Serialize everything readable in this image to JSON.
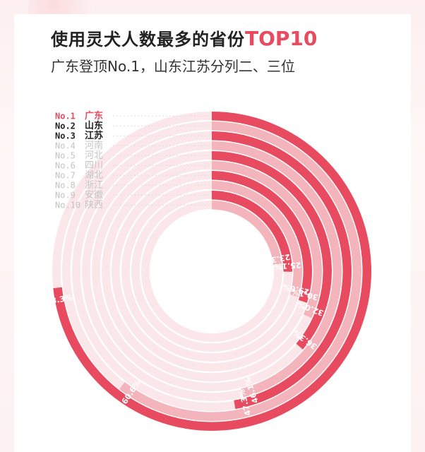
{
  "header": {
    "title_main": "使用灵犬人数最多的省份",
    "title_accent": "TOP10",
    "subtitle": "广东登顶No.1，山东江苏分列二、三位"
  },
  "colors": {
    "dark": "#e84a5f",
    "light": "#f4b4bc",
    "track": "#fbe7e9",
    "text_dark": "#222222",
    "text_muted": "#c4c4c4"
  },
  "chart_data": {
    "type": "radial-bar",
    "title": "使用灵犬人数最多的省份TOP10",
    "categories": [
      "广东",
      "山东",
      "江苏",
      "河南",
      "河北",
      "四川",
      "湖北",
      "浙江",
      "安徽",
      "陕西"
    ],
    "ranks": [
      "No.1",
      "No.2",
      "No.3",
      "No.4",
      "No.5",
      "No.6",
      "No.7",
      "No.8",
      "No.9",
      "No.10"
    ],
    "values": [
      73.3,
      60.6,
      47.3,
      46.1,
      36.3,
      32.0,
      30.1,
      29.6,
      25.1,
      23.3
    ],
    "value_labels": [
      "73.3%",
      "60.6%",
      "47.3%",
      "46.1%",
      "36.3%",
      "32.0%",
      "30.1%",
      "29.6%",
      "25.1%",
      "23.3%"
    ],
    "highlighted_ranks": 3,
    "unit": "%"
  }
}
